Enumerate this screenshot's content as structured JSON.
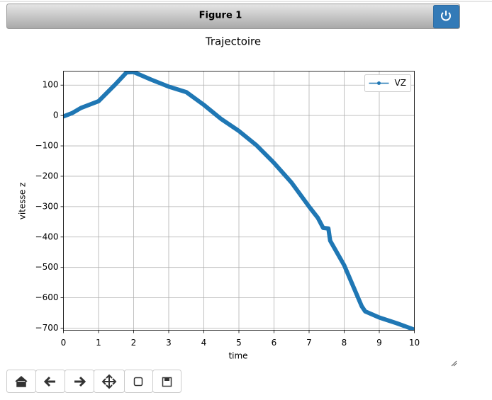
{
  "window": {
    "title": "Figure 1"
  },
  "chart_data": {
    "type": "line",
    "title": "Trajectoire",
    "x_label": "time",
    "y_label": "vitesse z",
    "x": [
      0,
      0.25,
      0.5,
      1,
      1.5,
      1.8,
      2,
      2.5,
      3,
      3.5,
      4,
      4.5,
      5,
      5.5,
      6,
      6.5,
      7,
      7.25,
      7.4,
      7.55,
      7.6,
      8,
      8.5,
      8.6,
      9,
      9.5,
      10
    ],
    "series": [
      {
        "name": "VZ",
        "color": "#1f77b4",
        "values": [
          -3,
          8,
          25,
          47,
          105,
          142,
          143,
          118,
          95,
          77,
          35,
          -12,
          -51,
          -98,
          -156,
          -221,
          -300,
          -337,
          -370,
          -372,
          -412,
          -493,
          -628,
          -645,
          -665,
          -684,
          -705
        ]
      }
    ],
    "xlim": [
      0,
      10
    ],
    "ylim": [
      -707,
      146
    ],
    "xticks": [
      0,
      1,
      2,
      3,
      4,
      5,
      6,
      7,
      8,
      9,
      10
    ],
    "yticks": [
      100,
      0,
      {
        "value": -100,
        "label": "−100"
      },
      {
        "value": -200,
        "label": "−200"
      },
      {
        "value": -300,
        "label": "−300"
      },
      {
        "value": -400,
        "label": "−400"
      },
      {
        "value": -500,
        "label": "−500"
      },
      {
        "value": -600,
        "label": "−600"
      },
      {
        "value": -700,
        "label": "−700"
      }
    ],
    "grid": true,
    "legend": "upper right"
  }
}
